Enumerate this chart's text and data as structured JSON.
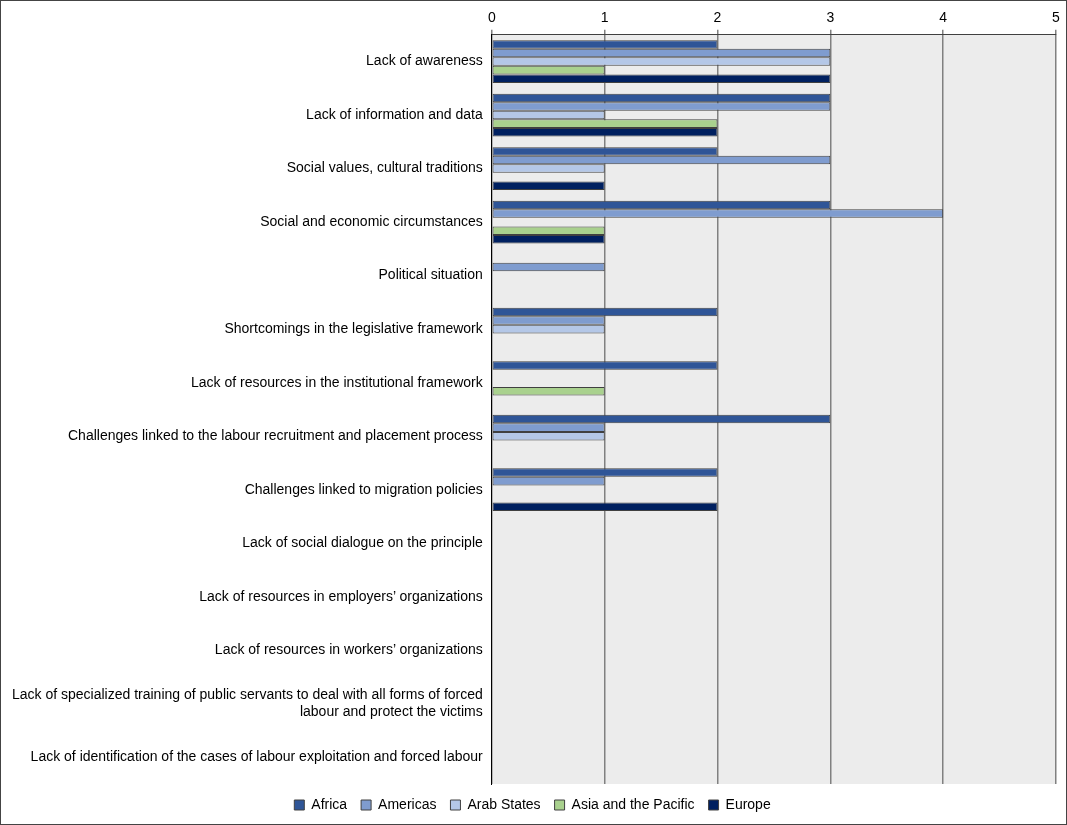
{
  "chart_data": {
    "type": "bar",
    "orientation": "horizontal",
    "categories": [
      "Lack of awareness",
      "Lack of information and data",
      "Social values, cultural traditions",
      "Social and economic circumstances",
      "Political situation",
      "Shortcomings in the legislative framework",
      "Lack of resources in the institutional framework",
      "Challenges linked to the labour recruitment and placement process",
      "Challenges linked to migration policies",
      "Lack of social dialogue on the principle",
      "Lack of resources in employers’ organizations",
      "Lack of resources in workers’ organizations",
      "Lack of specialized training of public servants to deal with all forms of forced labour and protect the victims",
      "Lack of identification of the cases of labour exploitation and forced labour"
    ],
    "series": [
      {
        "name": "Africa",
        "color": "#2f5597",
        "values": [
          2,
          3,
          2,
          3,
          0,
          2,
          2,
          3,
          2,
          0,
          0,
          0,
          0,
          0
        ]
      },
      {
        "name": "Americas",
        "color": "#7f9ccf",
        "values": [
          3,
          3,
          3,
          4,
          1,
          1,
          0,
          1,
          1,
          0,
          0,
          0,
          0,
          0
        ]
      },
      {
        "name": "Arab States",
        "color": "#b4c7e7",
        "values": [
          3,
          1,
          1,
          0,
          0,
          1,
          0,
          1,
          0,
          0,
          0,
          0,
          0,
          0
        ]
      },
      {
        "name": "Asia and the Pacific",
        "color": "#a9d18e",
        "values": [
          1,
          2,
          0,
          1,
          0,
          0,
          1,
          0,
          0,
          0,
          0,
          0,
          0,
          0
        ]
      },
      {
        "name": "Europe",
        "color": "#002060",
        "values": [
          3,
          2,
          1,
          1,
          0,
          0,
          0,
          0,
          2,
          0,
          0,
          0,
          0,
          0
        ]
      }
    ],
    "xlim": [
      0,
      5
    ],
    "xticks": [
      0,
      1,
      2,
      3,
      4,
      5
    ],
    "grid": "x",
    "legend": "bottom"
  }
}
